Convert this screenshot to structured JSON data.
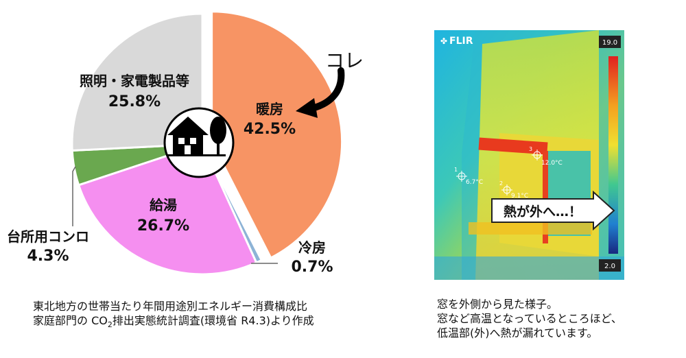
{
  "chart_data": {
    "type": "pie",
    "slices": [
      {
        "name": "暖房",
        "value": 42.5,
        "value_label": "42.5%",
        "color": "#f79464"
      },
      {
        "name": "冷房",
        "value": 0.7,
        "value_label": "0.7%",
        "color": "#8db3d6"
      },
      {
        "name": "給湯",
        "value": 26.7,
        "value_label": "26.7%",
        "color": "#f58ff0"
      },
      {
        "name": "台所用コンロ",
        "value": 4.3,
        "value_label": "4.3%",
        "color": "#6aa84f"
      },
      {
        "name": "照明・家電製品等",
        "value": 25.8,
        "value_label": "25.8%",
        "color": "#d9d9d9"
      }
    ],
    "annotation": "コレ",
    "start_angle_deg": 0,
    "direction": "clockwise",
    "exploded_slice": "暖房"
  },
  "captions": {
    "left_line1": "東北地方の世帯当たり年間用途別エネルギー消費構成比",
    "left_line2_prefix": "家庭部門の CO",
    "left_line2_sub": "2",
    "left_line2_suffix": "排出実態統計調査(環境省 R4.3)より作成",
    "right_line1": "窓を外側から見た様子。",
    "right_line2": "窓など高温となっているところほど、",
    "right_line3": "低温部(外)へ熱が漏れています。"
  },
  "thermal_image": {
    "brand": "FLIR",
    "scale_max": "19.0",
    "scale_min": "2.0",
    "callout": "熱が外へ…！",
    "spots": [
      {
        "id": "1",
        "temp": "6.7°C"
      },
      {
        "id": "2",
        "temp": "9.1°C"
      },
      {
        "id": "3",
        "temp": "12.0°C"
      }
    ]
  },
  "colors": {
    "house_icon_bg": "#000000",
    "callout_border": "#222222"
  }
}
